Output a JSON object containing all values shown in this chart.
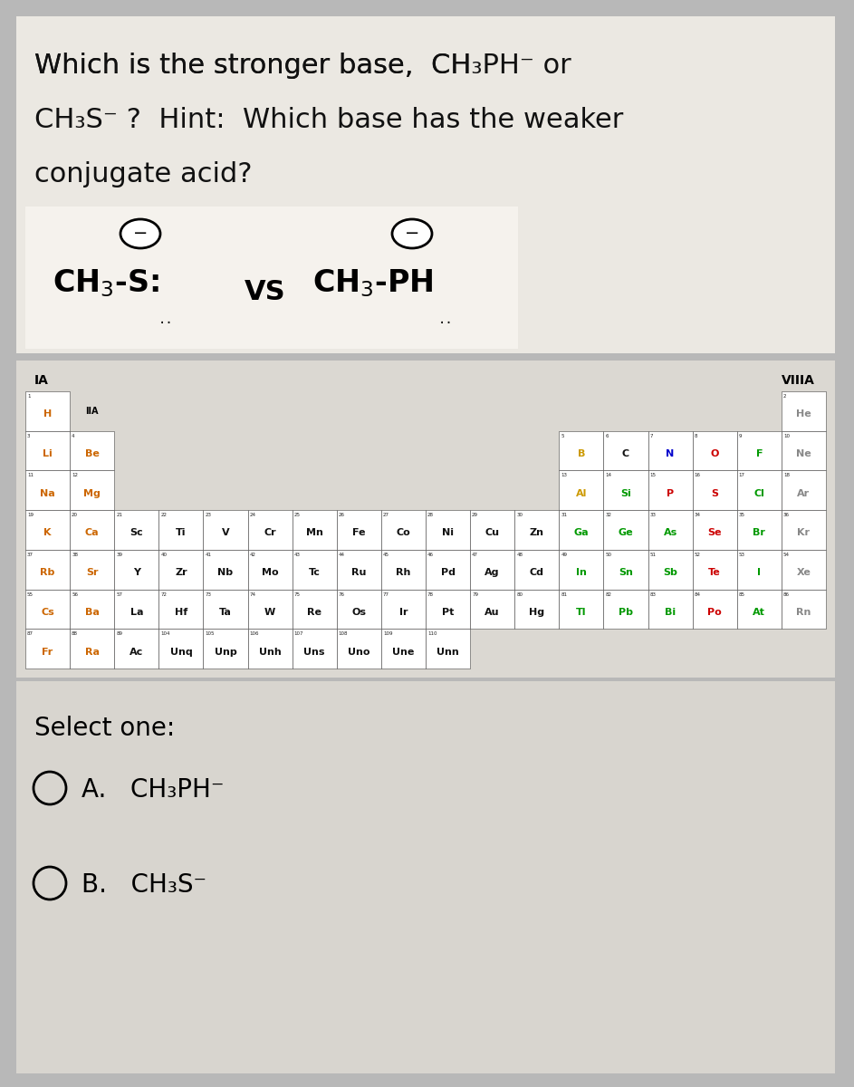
{
  "bg_color": "#b8b8b8",
  "panel_color": "#e8e5e0",
  "table_panel_color": "#dcdad5",
  "bottom_panel_color": "#d8d5d0",
  "periodic_table": {
    "elements": [
      {
        "symbol": "H",
        "number": 1,
        "row": 0,
        "col": 0,
        "color": "#cc6600"
      },
      {
        "symbol": "He",
        "number": 2,
        "row": 0,
        "col": 17,
        "color": "#888888"
      },
      {
        "symbol": "Li",
        "number": 3,
        "row": 1,
        "col": 0,
        "color": "#cc6600"
      },
      {
        "symbol": "Be",
        "number": 4,
        "row": 1,
        "col": 1,
        "color": "#cc6600"
      },
      {
        "symbol": "B",
        "number": 5,
        "row": 1,
        "col": 12,
        "color": "#cc9900"
      },
      {
        "symbol": "C",
        "number": 6,
        "row": 1,
        "col": 13,
        "color": "#111111"
      },
      {
        "symbol": "N",
        "number": 7,
        "row": 1,
        "col": 14,
        "color": "#0000cc"
      },
      {
        "symbol": "O",
        "number": 8,
        "row": 1,
        "col": 15,
        "color": "#cc0000"
      },
      {
        "symbol": "F",
        "number": 9,
        "row": 1,
        "col": 16,
        "color": "#009900"
      },
      {
        "symbol": "Ne",
        "number": 10,
        "row": 1,
        "col": 17,
        "color": "#888888"
      },
      {
        "symbol": "Na",
        "number": 11,
        "row": 2,
        "col": 0,
        "color": "#cc6600"
      },
      {
        "symbol": "Mg",
        "number": 12,
        "row": 2,
        "col": 1,
        "color": "#cc6600"
      },
      {
        "symbol": "Al",
        "number": 13,
        "row": 2,
        "col": 12,
        "color": "#cc9900"
      },
      {
        "symbol": "Si",
        "number": 14,
        "row": 2,
        "col": 13,
        "color": "#009900"
      },
      {
        "symbol": "P",
        "number": 15,
        "row": 2,
        "col": 14,
        "color": "#cc0000"
      },
      {
        "symbol": "S",
        "number": 16,
        "row": 2,
        "col": 15,
        "color": "#cc0000"
      },
      {
        "symbol": "Cl",
        "number": 17,
        "row": 2,
        "col": 16,
        "color": "#009900"
      },
      {
        "symbol": "Ar",
        "number": 18,
        "row": 2,
        "col": 17,
        "color": "#888888"
      },
      {
        "symbol": "K",
        "number": 19,
        "row": 3,
        "col": 0,
        "color": "#cc6600"
      },
      {
        "symbol": "Ca",
        "number": 20,
        "row": 3,
        "col": 1,
        "color": "#cc6600"
      },
      {
        "symbol": "Sc",
        "number": 21,
        "row": 3,
        "col": 2,
        "color": "#111111"
      },
      {
        "symbol": "Ti",
        "number": 22,
        "row": 3,
        "col": 3,
        "color": "#111111"
      },
      {
        "symbol": "V",
        "number": 23,
        "row": 3,
        "col": 4,
        "color": "#111111"
      },
      {
        "symbol": "Cr",
        "number": 24,
        "row": 3,
        "col": 5,
        "color": "#111111"
      },
      {
        "symbol": "Mn",
        "number": 25,
        "row": 3,
        "col": 6,
        "color": "#111111"
      },
      {
        "symbol": "Fe",
        "number": 26,
        "row": 3,
        "col": 7,
        "color": "#111111"
      },
      {
        "symbol": "Co",
        "number": 27,
        "row": 3,
        "col": 8,
        "color": "#111111"
      },
      {
        "symbol": "Ni",
        "number": 28,
        "row": 3,
        "col": 9,
        "color": "#111111"
      },
      {
        "symbol": "Cu",
        "number": 29,
        "row": 3,
        "col": 10,
        "color": "#111111"
      },
      {
        "symbol": "Zn",
        "number": 30,
        "row": 3,
        "col": 11,
        "color": "#111111"
      },
      {
        "symbol": "Ga",
        "number": 31,
        "row": 3,
        "col": 12,
        "color": "#009900"
      },
      {
        "symbol": "Ge",
        "number": 32,
        "row": 3,
        "col": 13,
        "color": "#009900"
      },
      {
        "symbol": "As",
        "number": 33,
        "row": 3,
        "col": 14,
        "color": "#009900"
      },
      {
        "symbol": "Se",
        "number": 34,
        "row": 3,
        "col": 15,
        "color": "#cc0000"
      },
      {
        "symbol": "Br",
        "number": 35,
        "row": 3,
        "col": 16,
        "color": "#009900"
      },
      {
        "symbol": "Kr",
        "number": 36,
        "row": 3,
        "col": 17,
        "color": "#888888"
      },
      {
        "symbol": "Rb",
        "number": 37,
        "row": 4,
        "col": 0,
        "color": "#cc6600"
      },
      {
        "symbol": "Sr",
        "number": 38,
        "row": 4,
        "col": 1,
        "color": "#cc6600"
      },
      {
        "symbol": "Y",
        "number": 39,
        "row": 4,
        "col": 2,
        "color": "#111111"
      },
      {
        "symbol": "Zr",
        "number": 40,
        "row": 4,
        "col": 3,
        "color": "#111111"
      },
      {
        "symbol": "Nb",
        "number": 41,
        "row": 4,
        "col": 4,
        "color": "#111111"
      },
      {
        "symbol": "Mo",
        "number": 42,
        "row": 4,
        "col": 5,
        "color": "#111111"
      },
      {
        "symbol": "Tc",
        "number": 43,
        "row": 4,
        "col": 6,
        "color": "#111111"
      },
      {
        "symbol": "Ru",
        "number": 44,
        "row": 4,
        "col": 7,
        "color": "#111111"
      },
      {
        "symbol": "Rh",
        "number": 45,
        "row": 4,
        "col": 8,
        "color": "#111111"
      },
      {
        "symbol": "Pd",
        "number": 46,
        "row": 4,
        "col": 9,
        "color": "#111111"
      },
      {
        "symbol": "Ag",
        "number": 47,
        "row": 4,
        "col": 10,
        "color": "#111111"
      },
      {
        "symbol": "Cd",
        "number": 48,
        "row": 4,
        "col": 11,
        "color": "#111111"
      },
      {
        "symbol": "In",
        "number": 49,
        "row": 4,
        "col": 12,
        "color": "#009900"
      },
      {
        "symbol": "Sn",
        "number": 50,
        "row": 4,
        "col": 13,
        "color": "#009900"
      },
      {
        "symbol": "Sb",
        "number": 51,
        "row": 4,
        "col": 14,
        "color": "#009900"
      },
      {
        "symbol": "Te",
        "number": 52,
        "row": 4,
        "col": 15,
        "color": "#cc0000"
      },
      {
        "symbol": "I",
        "number": 53,
        "row": 4,
        "col": 16,
        "color": "#009900"
      },
      {
        "symbol": "Xe",
        "number": 54,
        "row": 4,
        "col": 17,
        "color": "#888888"
      },
      {
        "symbol": "Cs",
        "number": 55,
        "row": 5,
        "col": 0,
        "color": "#cc6600"
      },
      {
        "symbol": "Ba",
        "number": 56,
        "row": 5,
        "col": 1,
        "color": "#cc6600"
      },
      {
        "symbol": "La",
        "number": 57,
        "row": 5,
        "col": 2,
        "color": "#111111"
      },
      {
        "symbol": "Hf",
        "number": 72,
        "row": 5,
        "col": 3,
        "color": "#111111"
      },
      {
        "symbol": "Ta",
        "number": 73,
        "row": 5,
        "col": 4,
        "color": "#111111"
      },
      {
        "symbol": "W",
        "number": 74,
        "row": 5,
        "col": 5,
        "color": "#111111"
      },
      {
        "symbol": "Re",
        "number": 75,
        "row": 5,
        "col": 6,
        "color": "#111111"
      },
      {
        "symbol": "Os",
        "number": 76,
        "row": 5,
        "col": 7,
        "color": "#111111"
      },
      {
        "symbol": "Ir",
        "number": 77,
        "row": 5,
        "col": 8,
        "color": "#111111"
      },
      {
        "symbol": "Pt",
        "number": 78,
        "row": 5,
        "col": 9,
        "color": "#111111"
      },
      {
        "symbol": "Au",
        "number": 79,
        "row": 5,
        "col": 10,
        "color": "#111111"
      },
      {
        "symbol": "Hg",
        "number": 80,
        "row": 5,
        "col": 11,
        "color": "#111111"
      },
      {
        "symbol": "Tl",
        "number": 81,
        "row": 5,
        "col": 12,
        "color": "#009900"
      },
      {
        "symbol": "Pb",
        "number": 82,
        "row": 5,
        "col": 13,
        "color": "#009900"
      },
      {
        "symbol": "Bi",
        "number": 83,
        "row": 5,
        "col": 14,
        "color": "#009900"
      },
      {
        "symbol": "Po",
        "number": 84,
        "row": 5,
        "col": 15,
        "color": "#cc0000"
      },
      {
        "symbol": "At",
        "number": 85,
        "row": 5,
        "col": 16,
        "color": "#009900"
      },
      {
        "symbol": "Rn",
        "number": 86,
        "row": 5,
        "col": 17,
        "color": "#888888"
      },
      {
        "symbol": "Fr",
        "number": 87,
        "row": 6,
        "col": 0,
        "color": "#cc6600"
      },
      {
        "symbol": "Ra",
        "number": 88,
        "row": 6,
        "col": 1,
        "color": "#cc6600"
      },
      {
        "symbol": "Ac",
        "number": 89,
        "row": 6,
        "col": 2,
        "color": "#111111"
      },
      {
        "symbol": "Unq",
        "number": 104,
        "row": 6,
        "col": 3,
        "color": "#111111"
      },
      {
        "symbol": "Unp",
        "number": 105,
        "row": 6,
        "col": 4,
        "color": "#111111"
      },
      {
        "symbol": "Unh",
        "number": 106,
        "row": 6,
        "col": 5,
        "color": "#111111"
      },
      {
        "symbol": "Uns",
        "number": 107,
        "row": 6,
        "col": 6,
        "color": "#111111"
      },
      {
        "symbol": "Uno",
        "number": 108,
        "row": 6,
        "col": 7,
        "color": "#111111"
      },
      {
        "symbol": "Une",
        "number": 109,
        "row": 6,
        "col": 8,
        "color": "#111111"
      },
      {
        "symbol": "Unn",
        "number": 110,
        "row": 6,
        "col": 9,
        "color": "#111111"
      }
    ]
  }
}
